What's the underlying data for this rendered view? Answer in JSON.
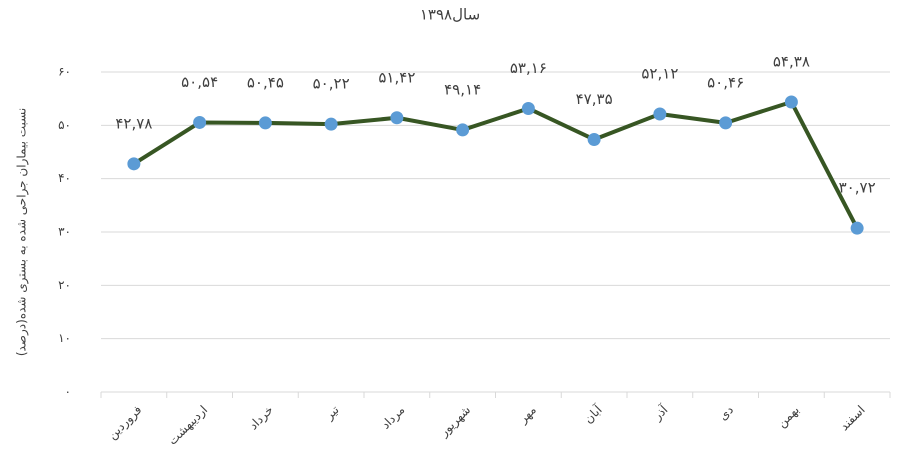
{
  "chart_data": {
    "type": "line",
    "title": "سال۱۳۹۸",
    "y_label": "نسبت بیماران جراحی شده به بستری شده(درصد)",
    "categories": [
      "فروردین",
      "اردیبهشت",
      "خرداد",
      "تیر",
      "مرداد",
      "شهریور",
      "مهر",
      "آبان",
      "آذر",
      "دی",
      "بهمن",
      "اسفند"
    ],
    "series": [
      {
        "name": "سال۱۳۹۸",
        "color": "#375623",
        "marker_color": "#5b9bd5",
        "values": [
          42.78,
          50.54,
          50.45,
          50.22,
          51.42,
          49.14,
          53.16,
          47.35,
          52.12,
          50.46,
          54.38,
          30.72
        ],
        "value_labels": [
          "۴۲,۷۸",
          "۵۰,۵۴",
          "۵۰,۴۵",
          "۵۰,۲۲",
          "۵۱,۴۲",
          "۴۹,۱۴",
          "۵۳,۱۶",
          "۴۷,۳۵",
          "۵۲,۱۲",
          "۵۰,۴۶",
          "۵۴,۳۸",
          "۳۰,۷۲"
        ]
      }
    ],
    "ylim": [
      0,
      60
    ],
    "yticks": [
      {
        "value": 0,
        "label": "۰"
      },
      {
        "value": 10,
        "label": "۱۰"
      },
      {
        "value": 20,
        "label": "۲۰"
      },
      {
        "value": 30,
        "label": "۳۰"
      },
      {
        "value": 40,
        "label": "۴۰"
      },
      {
        "value": 50,
        "label": "۵۰"
      },
      {
        "value": 60,
        "label": "۶۰"
      }
    ],
    "grid": true
  }
}
